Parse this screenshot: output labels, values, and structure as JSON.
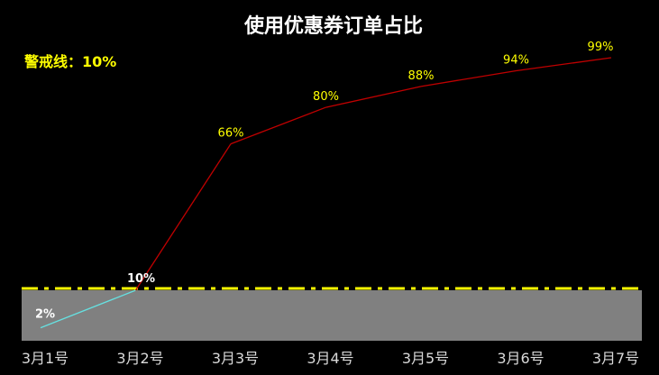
{
  "chart_data": {
    "type": "line",
    "title": "使用优惠券订单占比",
    "annotation": "警戒线：10%",
    "categories": [
      "3月1号",
      "3月2号",
      "3月3号",
      "3月4号",
      "3月5号",
      "3月6号",
      "3月7号"
    ],
    "values": [
      2,
      10,
      66,
      80,
      88,
      94,
      99
    ],
    "data_labels": [
      "2%",
      "10%",
      "66%",
      "80%",
      "88%",
      "94%",
      "99%"
    ],
    "unit": "%",
    "threshold": 10,
    "ylim": [
      0,
      100
    ],
    "grid": false,
    "legend": "none",
    "colors": {
      "background": "#000000",
      "title": "#ffffff",
      "annotation": "#ffff00",
      "threshold_line": "#ffff00",
      "below_threshold_area": "#808080",
      "line_above": "#c00000",
      "line_below": "#66e0e0",
      "label_above": "#ffff00",
      "label_below": "#ffffff",
      "tick_label": "#d9d9d9"
    }
  }
}
